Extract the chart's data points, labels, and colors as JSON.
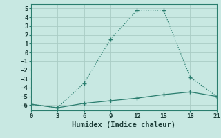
{
  "line1_x": [
    0,
    3,
    6,
    9,
    12,
    15,
    18,
    21
  ],
  "line1_y": [
    -5.9,
    -6.3,
    -3.5,
    1.5,
    4.8,
    4.8,
    -2.8,
    -5.0
  ],
  "line2_x": [
    0,
    3,
    6,
    9,
    12,
    15,
    18,
    21
  ],
  "line2_y": [
    -5.9,
    -6.3,
    -5.8,
    -5.5,
    -5.2,
    -4.8,
    -4.5,
    -5.0
  ],
  "line_color": "#2a7d6e",
  "bg_color": "#c8e8e2",
  "grid_color": "#aaccc5",
  "xlabel": "Humidex (Indice chaleur)",
  "xlim": [
    0,
    21
  ],
  "ylim": [
    -6.6,
    5.5
  ],
  "xticks": [
    0,
    3,
    6,
    9,
    12,
    15,
    18,
    21
  ],
  "yticks": [
    -6,
    -5,
    -4,
    -3,
    -2,
    -1,
    0,
    1,
    2,
    3,
    4,
    5
  ],
  "xlabel_fontsize": 7.5,
  "tick_fontsize": 6.5
}
